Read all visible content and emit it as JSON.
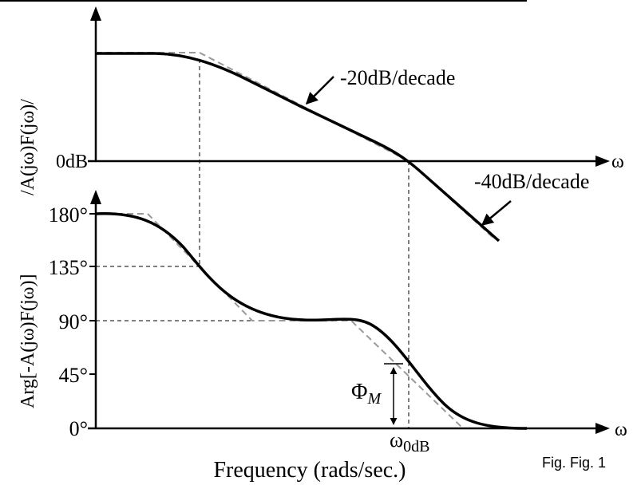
{
  "magnitude_plot": {
    "y_axis_label": "/A(jω)F(jω)/",
    "zero_level_label": "0dB",
    "x_axis_symbol": "ω",
    "slope_label_1": "-20dB/decade",
    "slope_label_2": "-40dB/decade"
  },
  "phase_plot": {
    "y_axis_label": "Arg[-A(jω)F(jω)]",
    "tick_labels": [
      "180°",
      "135°",
      "90°",
      "45°",
      "0°"
    ],
    "x_axis_symbol": "ω",
    "crossover_label": "ω",
    "crossover_subscript": "0dB",
    "margin_label": "Φ",
    "margin_subscript": "M"
  },
  "x_axis_label": "Frequency (rads/sec.)",
  "caption": "Fig. Fig. 1",
  "colors": {
    "curve": "#000000",
    "asymptote": "#999999",
    "guide": "#000000"
  }
}
